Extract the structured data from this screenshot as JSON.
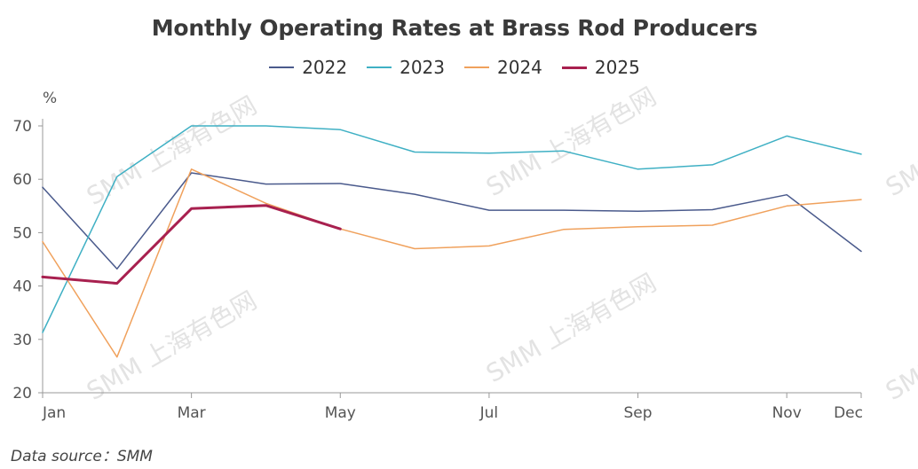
{
  "chart_data": {
    "type": "line",
    "title": "Monthly Operating Rates at Brass Rod Producers",
    "ylabel": "%",
    "xlabel": "",
    "ylim": [
      20,
      70
    ],
    "yticks": [
      20,
      30,
      40,
      50,
      60,
      70
    ],
    "months": [
      "Jan",
      "Feb",
      "Mar",
      "Apr",
      "May",
      "Jun",
      "Jul",
      "Aug",
      "Sep",
      "Oct",
      "Nov",
      "Dec"
    ],
    "xtick_labels": [
      {
        "month": "Jan",
        "label": "Jan"
      },
      {
        "month": "Mar",
        "label": "Mar"
      },
      {
        "month": "May",
        "label": "May"
      },
      {
        "month": "Jul",
        "label": "Jul"
      },
      {
        "month": "Sep",
        "label": "Sep"
      },
      {
        "month": "Nov",
        "label": "Nov"
      },
      {
        "month": "Dec",
        "label": "Dec"
      }
    ],
    "grid": false,
    "legend_position": "top-center",
    "series": [
      {
        "name": "2022",
        "color": "#4a5a8c",
        "width": 1.5,
        "values": [
          58.5,
          43.2,
          61.2,
          59.1,
          59.2,
          57.2,
          54.2,
          54.2,
          54.0,
          54.3,
          57.1,
          46.5
        ]
      },
      {
        "name": "2023",
        "color": "#3fb0c4",
        "width": 1.5,
        "values": [
          31.3,
          60.5,
          70.0,
          70.0,
          69.3,
          65.1,
          64.9,
          65.3,
          61.9,
          62.7,
          68.1,
          64.7
        ]
      },
      {
        "name": "2024",
        "color": "#f0a15c",
        "width": 1.5,
        "values": [
          48.3,
          26.7,
          61.9,
          55.5,
          50.7,
          47.0,
          47.5,
          50.6,
          51.1,
          51.4,
          55.0,
          56.2
        ]
      },
      {
        "name": "2025",
        "color": "#a8204f",
        "width": 3,
        "values": [
          41.7,
          40.5,
          54.5,
          55.1,
          50.7
        ]
      }
    ],
    "source": "Data source：SMM",
    "watermark": "SMM 上海有色网"
  }
}
